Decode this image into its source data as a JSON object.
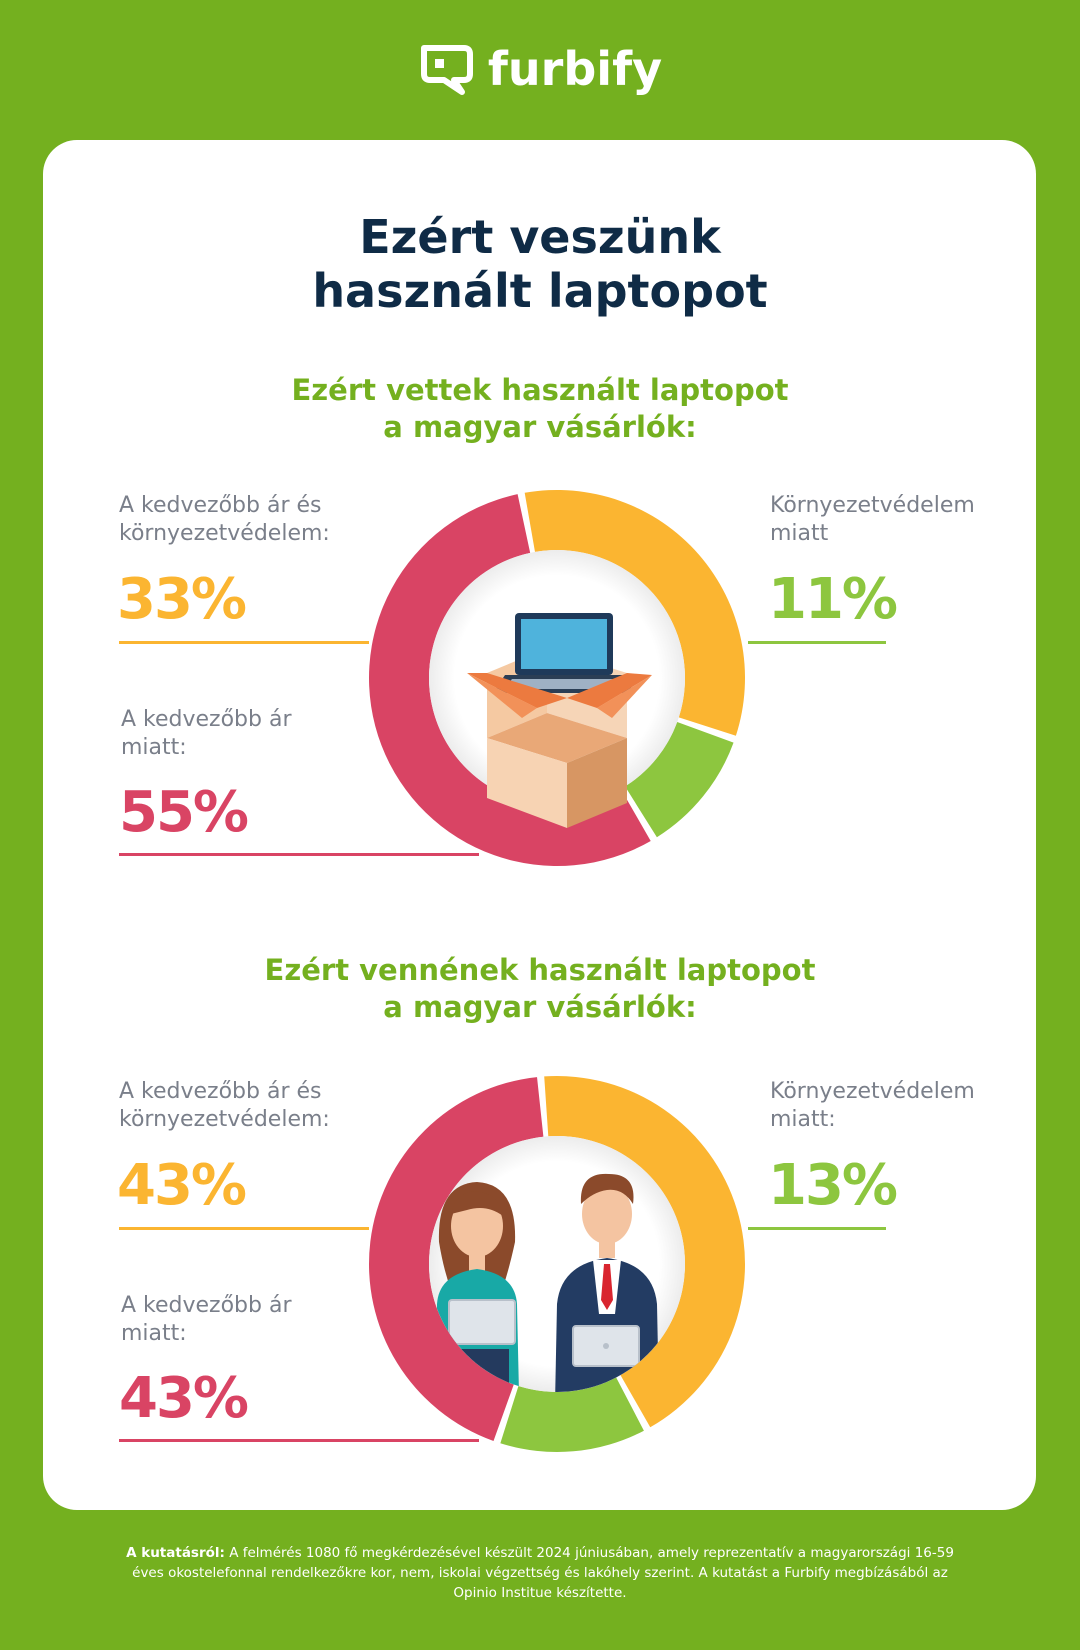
{
  "brand": {
    "name": "furbify",
    "logo_icon": "speech-bubble-f-icon"
  },
  "title": [
    "Ezért veszünk",
    "használt laptopot"
  ],
  "colors": {
    "background": "#74b01f",
    "orange": "#fbb531",
    "green": "#8dc63f",
    "red": "#d94464",
    "title": "#0f2b46"
  },
  "sections": [
    {
      "heading": [
        "Ezért vettek használt laptopot",
        "a magyar vásárlók:"
      ],
      "center_icon": "laptop-in-box-icon",
      "labels": {
        "both": [
          "A kedvezőbb ár és",
          "környezetvédelem:"
        ],
        "price": [
          "A kedvezőbb ár",
          "miatt:"
        ],
        "env": [
          "Környezetvédelem",
          "miatt"
        ]
      },
      "values_text": {
        "both": "33%",
        "price": "55%",
        "env": "11%"
      }
    },
    {
      "heading": [
        "Ezért vennének használt laptopot",
        "a magyar vásárlók:"
      ],
      "center_icon": "people-with-laptops-icon",
      "labels": {
        "both": [
          "A kedvezőbb ár és",
          "környezetvédelem:"
        ],
        "price": [
          "A kedvezőbb ár",
          "miatt:"
        ],
        "env": [
          "Környezetvédelem",
          "miatt:"
        ]
      },
      "values_text": {
        "both": "43%",
        "price": "43%",
        "env": "13%"
      }
    }
  ],
  "chart_data": [
    {
      "type": "pie",
      "title": "Ezért vettek használt laptopot a magyar vásárlók:",
      "categories": [
        "A kedvezőbb ár és környezetvédelem",
        "Környezetvédelem miatt",
        "A kedvezőbb ár miatt"
      ],
      "values": [
        33,
        11,
        55
      ],
      "colors": [
        "#fbb531",
        "#8dc63f",
        "#d94464"
      ]
    },
    {
      "type": "pie",
      "title": "Ezért vennének használt laptopot a magyar vásárlók:",
      "categories": [
        "A kedvezőbb ár és környezetvédelem",
        "Környezetvédelem miatt",
        "A kedvezőbb ár miatt"
      ],
      "values": [
        43,
        13,
        43
      ],
      "colors": [
        "#fbb531",
        "#8dc63f",
        "#d94464"
      ]
    }
  ],
  "footnote": {
    "lead": "A kutatásról:",
    "text": " A felmérés 1080 fő megkérdezésével készült 2024 júniusában, amely reprezentatív a magyarországi 16-59 éves okostelefonnal rendelkezőkre kor, nem, iskolai végzettség és lakóhely szerint. A kutatást a Furbify megbízásából az Opinio Institue készítette."
  }
}
